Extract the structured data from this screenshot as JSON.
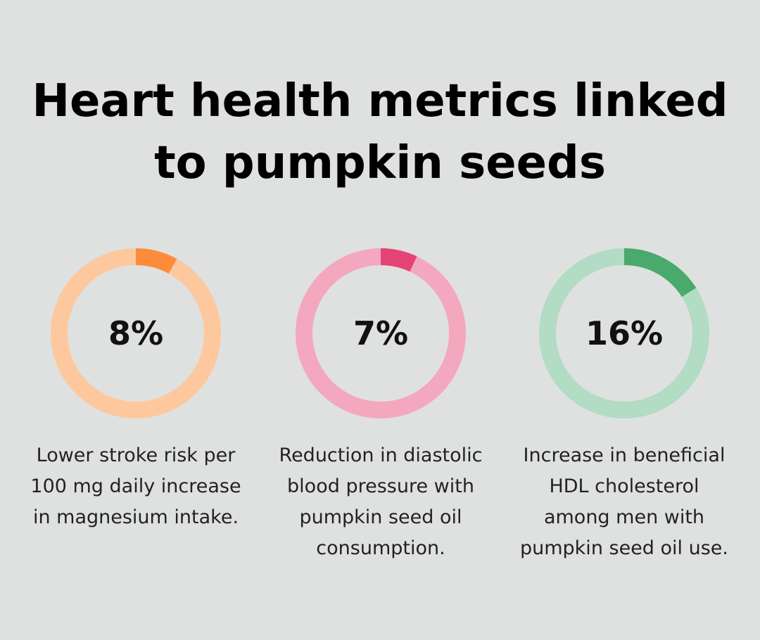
{
  "title": "Heart health metrics linked to pumpkin seeds",
  "chart_data": {
    "type": "donut",
    "items": [
      {
        "value": 8,
        "label": "8%",
        "description": "Lower stroke risk per 100 mg daily increase in magnesium intake.",
        "color": "#fd8c3a",
        "track_color": "#fec89e"
      },
      {
        "value": 7,
        "label": "7%",
        "description": "Reduction in diastolic blood pressure with pumpkin seed oil consumption.",
        "color": "#e44475",
        "track_color": "#f3a8c0"
      },
      {
        "value": 16,
        "label": "16%",
        "description": "Increase in beneficial HDL cholesterol among men with pumpkin seed oil use.",
        "color": "#4aa96c",
        "track_color": "#b2dcc3"
      }
    ]
  }
}
